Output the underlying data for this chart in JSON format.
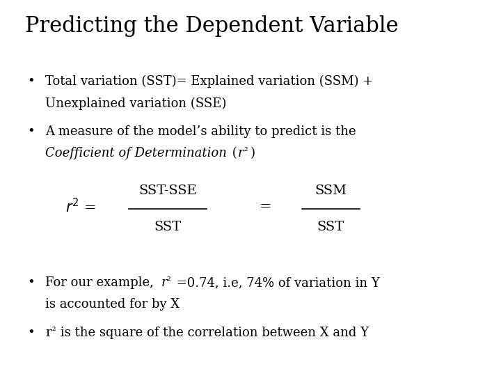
{
  "title": "Predicting the Dependent Variable",
  "title_fontsize": 22,
  "background_color": "#ffffff",
  "text_color": "#000000",
  "bullet1_line1": "Total variation (SST)= Explained variation (SSM) +",
  "bullet1_line2": "Unexplained variation (SSE)",
  "bullet2_line1": "A measure of the model’s ability to predict is the",
  "bullet3_line2": "is accounted for by X",
  "bullet4": " is the square of the correlation between X and Y",
  "body_fontsize": 13,
  "formula_fontsize": 14
}
